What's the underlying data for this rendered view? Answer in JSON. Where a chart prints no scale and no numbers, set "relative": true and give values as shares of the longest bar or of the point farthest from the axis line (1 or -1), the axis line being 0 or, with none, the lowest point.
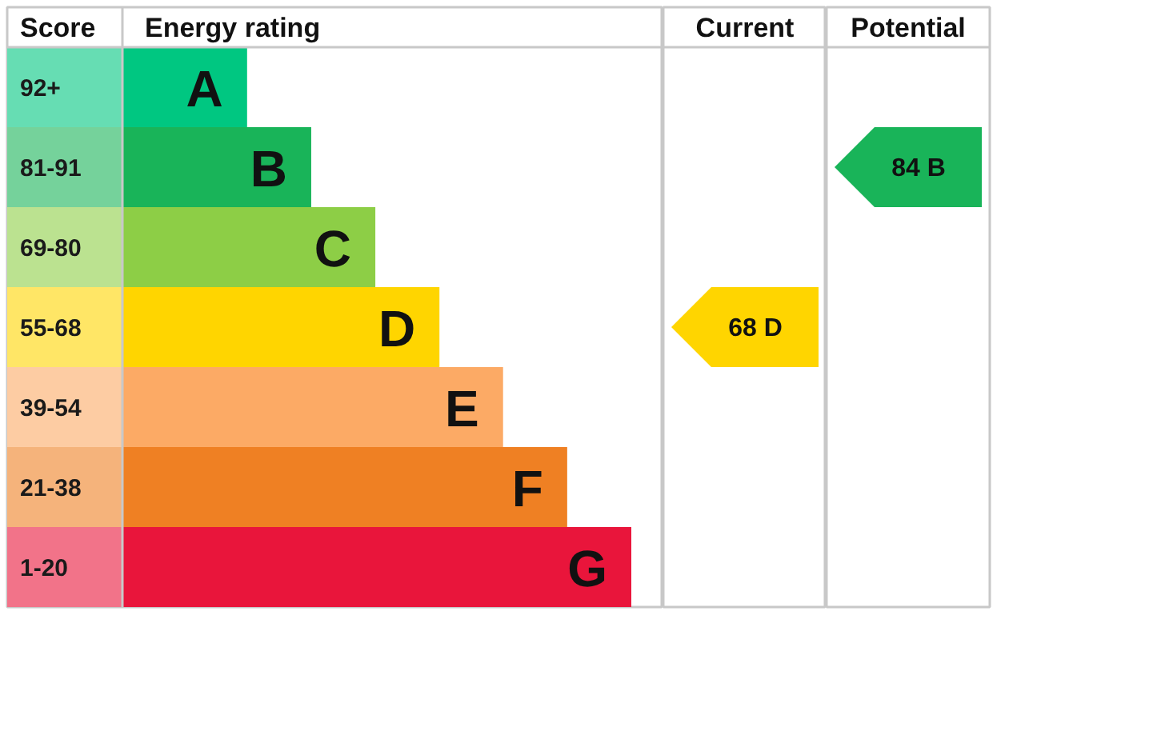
{
  "chart_data": [
    {
      "type": "bar",
      "orientation": "horizontal",
      "relative": true,
      "ylabel": "Score",
      "xlabel": "Energy rating",
      "categories": [
        "92+",
        "81-91",
        "69-80",
        "55-68",
        "39-54",
        "21-38",
        "1-20"
      ],
      "values": [
        0.245,
        0.371,
        0.497,
        0.623,
        0.748,
        0.874,
        1
      ],
      "colors": [
        "#00c781",
        "#19b459",
        "#8dce46",
        "#ffd500",
        "#fcaa65",
        "#ef8023",
        "#e9153b"
      ],
      "annotations": [
        {
          "text": "A",
          "x": 0.245,
          "y": "92+"
        },
        {
          "text": "B",
          "x": 0.371,
          "y": "81-91"
        },
        {
          "text": "C",
          "x": 0.497,
          "y": "69-80"
        },
        {
          "text": "D",
          "x": 0.623,
          "y": "55-68"
        },
        {
          "text": "E",
          "x": 0.748,
          "y": "39-54"
        },
        {
          "text": "F",
          "x": 0.874,
          "y": "21-38"
        },
        {
          "text": "G",
          "x": 1,
          "y": "1-20"
        }
      ]
    },
    {
      "type": "other",
      "title": "Current",
      "categories": [
        null,
        null,
        null,
        null,
        null,
        null,
        null
      ],
      "values": [
        null,
        null,
        null,
        68,
        null,
        null,
        null
      ],
      "color": "#ffd500",
      "value_labels": [
        null,
        null,
        null,
        "68 D",
        null,
        null,
        null
      ]
    },
    {
      "type": "other",
      "title": "Potential",
      "categories": [
        null,
        null,
        null,
        null,
        null,
        null,
        null
      ],
      "values": [
        null,
        84,
        null,
        null,
        null,
        null,
        null
      ],
      "color": "#19b459",
      "value_labels": [
        null,
        "84 B",
        null,
        null,
        null,
        null,
        null
      ]
    }
  ]
}
